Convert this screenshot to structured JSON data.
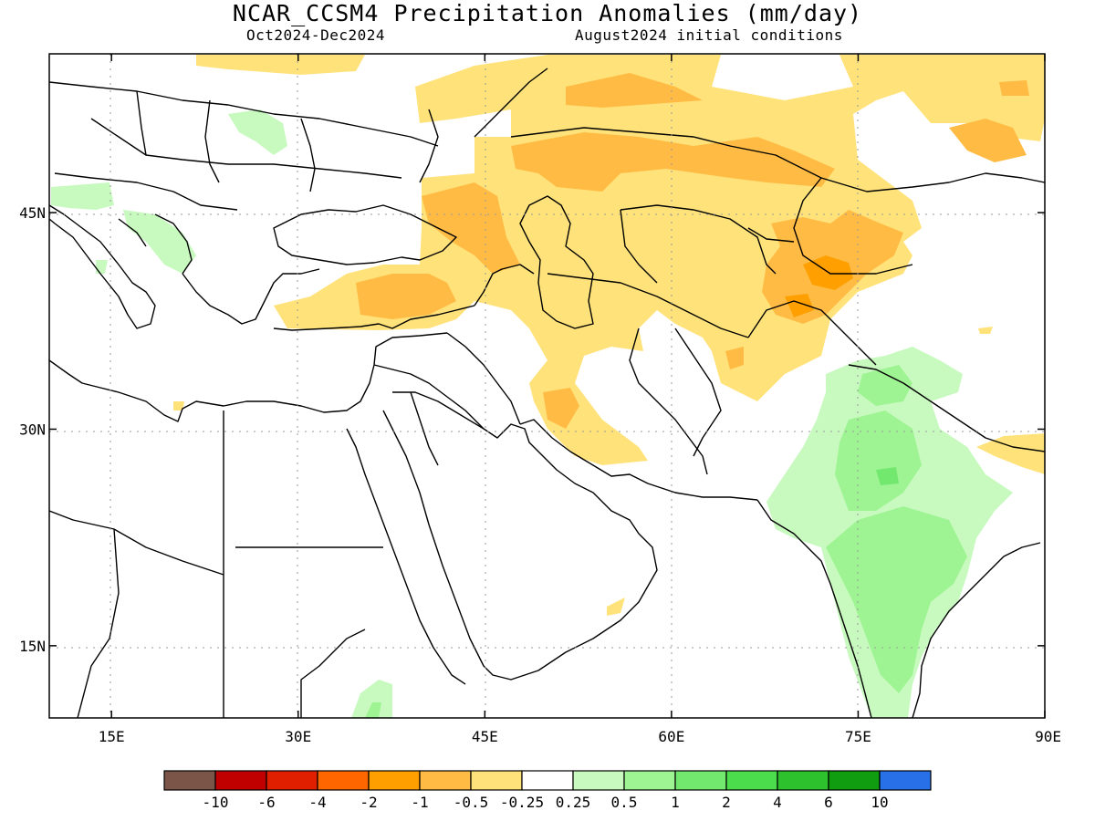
{
  "title": "NCAR_CCSM4 Precipitation Anomalies (mm/day)",
  "period": "Oct2024-Dec2024",
  "initial_conditions": "August2024 initial conditions",
  "map": {
    "lon_range": [
      10,
      90
    ],
    "lat_range": [
      10,
      56
    ],
    "lon_ticks": [
      {
        "value": 15,
        "label": "15E"
      },
      {
        "value": 30,
        "label": "30E"
      },
      {
        "value": 45,
        "label": "45E"
      },
      {
        "value": 60,
        "label": "60E"
      },
      {
        "value": 75,
        "label": "75E"
      },
      {
        "value": 90,
        "label": "90E"
      }
    ],
    "lat_ticks": [
      {
        "value": 15,
        "label": "15N"
      },
      {
        "value": 30,
        "label": "30N"
      },
      {
        "value": 45,
        "label": "45N"
      }
    ]
  },
  "legend": {
    "colors": [
      "#7a5548",
      "#c00000",
      "#e01e00",
      "#ff6600",
      "#ff9f00",
      "#ffbb44",
      "#ffe27a",
      "#ffffff",
      "#c8fac0",
      "#9ef393",
      "#73e86f",
      "#4bdd4b",
      "#2ec12e",
      "#109e10",
      "#2870e8"
    ],
    "labels": [
      "-10",
      "-6",
      "-4",
      "-2",
      "-1",
      "-0.5",
      "-0.25",
      "0.25",
      "0.5",
      "1",
      "2",
      "4",
      "6",
      "10"
    ]
  }
}
